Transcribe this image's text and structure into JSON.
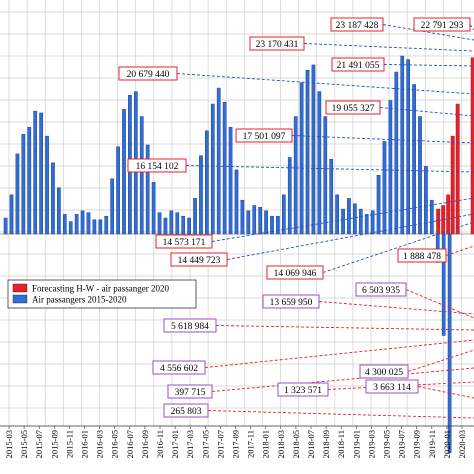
{
  "chart_data": {
    "type": "bar",
    "title": "",
    "xlabel": "",
    "ylabel": "",
    "x_tick_labels": [
      "2015-03",
      "2015-05",
      "2015-07",
      "2015-09",
      "2015-11",
      "2016-01",
      "2016-03",
      "2016-05",
      "2016-07",
      "2016-09",
      "2016-11",
      "2017-01",
      "2017-03",
      "2017-05",
      "2017-07",
      "2017-09",
      "2017-11",
      "2018-01",
      "2018-03",
      "2018-05",
      "2018-07",
      "2018-09",
      "2018-11",
      "2019-01",
      "2019-03",
      "2019-05",
      "2019-07",
      "2019-09",
      "2019-11",
      "2020-01",
      "2020-03",
      "2020-05"
    ],
    "legend": {
      "placement": "left-middle",
      "entries": [
        {
          "label": "Forecasting H-W - air passanger 2020",
          "color": "#e8202a"
        },
        {
          "label": "Air passangers 2015-2020",
          "color": "#2f6fd6"
        }
      ]
    },
    "series": [
      {
        "name": "Air passangers 2015-2020",
        "color": "#2f6fd6",
        "heights": [
          0.09,
          0.22,
          0.45,
          0.56,
          0.6,
          0.69,
          0.68,
          0.55,
          0.4,
          0.26,
          0.11,
          0.07,
          0.11,
          0.13,
          0.12,
          0.08,
          0.08,
          0.1,
          0.31,
          0.49,
          0.7,
          0.78,
          0.8,
          0.66,
          0.5,
          0.29,
          0.12,
          0.09,
          0.13,
          0.12,
          0.1,
          0.09,
          0.2,
          0.44,
          0.58,
          0.73,
          0.82,
          0.74,
          0.6,
          0.36,
          0.19,
          0.13,
          0.16,
          0.15,
          0.13,
          0.1,
          0.1,
          0.22,
          0.43,
          0.66,
          0.85,
          0.92,
          0.95,
          0.8,
          0.66,
          0.42,
          0.22,
          0.14,
          0.2,
          0.17,
          0.14,
          0.11,
          0.13,
          0.33,
          0.52,
          0.75,
          0.91,
          1.0,
          0.98,
          0.84,
          0.66,
          0.38,
          0.19,
          -0.16,
          -0.57,
          -1.23
        ]
      },
      {
        "name": "Forecasting H-W - air passanger 2020",
        "color": "#e8202a",
        "heights": [
          0.14,
          0.16,
          0.22,
          0.55,
          0.73,
          0.99
        ]
      }
    ],
    "annotations": [
      {
        "label": "23 187 428",
        "color": "#e8202a"
      },
      {
        "label": "22 791 293",
        "color": "#e8202a"
      },
      {
        "label": "23 170 431",
        "color": "#e8202a"
      },
      {
        "label": "21 491 055",
        "color": "#e8202a"
      },
      {
        "label": "20 679 440",
        "color": "#e8202a"
      },
      {
        "label": "19 055 327",
        "color": "#e8202a"
      },
      {
        "label": "17 501 097",
        "color": "#e8202a"
      },
      {
        "label": "16 154 102",
        "color": "#e8202a"
      },
      {
        "label": "14 573 171",
        "color": "#e8202a"
      },
      {
        "label": "14 449 723",
        "color": "#e8202a"
      },
      {
        "label": "14 069 946",
        "color": "#e8202a"
      },
      {
        "label": "1 888 478",
        "color": "#e8202a"
      },
      {
        "label": "13 659 950",
        "color": "#9b4fc7"
      },
      {
        "label": "6 503 935",
        "color": "#9b4fc7"
      },
      {
        "label": "5 618 984",
        "color": "#9b4fc7"
      },
      {
        "label": "4 556 602",
        "color": "#9b4fc7"
      },
      {
        "label": "4 300 025",
        "color": "#9b4fc7"
      },
      {
        "label": "397 715",
        "color": "#9b4fc7"
      },
      {
        "label": "1 323 571",
        "color": "#9b4fc7"
      },
      {
        "label": "3 663 114",
        "color": "#9b4fc7"
      },
      {
        "label": "265 803",
        "color": "#9b4fc7"
      }
    ],
    "grid": true
  }
}
